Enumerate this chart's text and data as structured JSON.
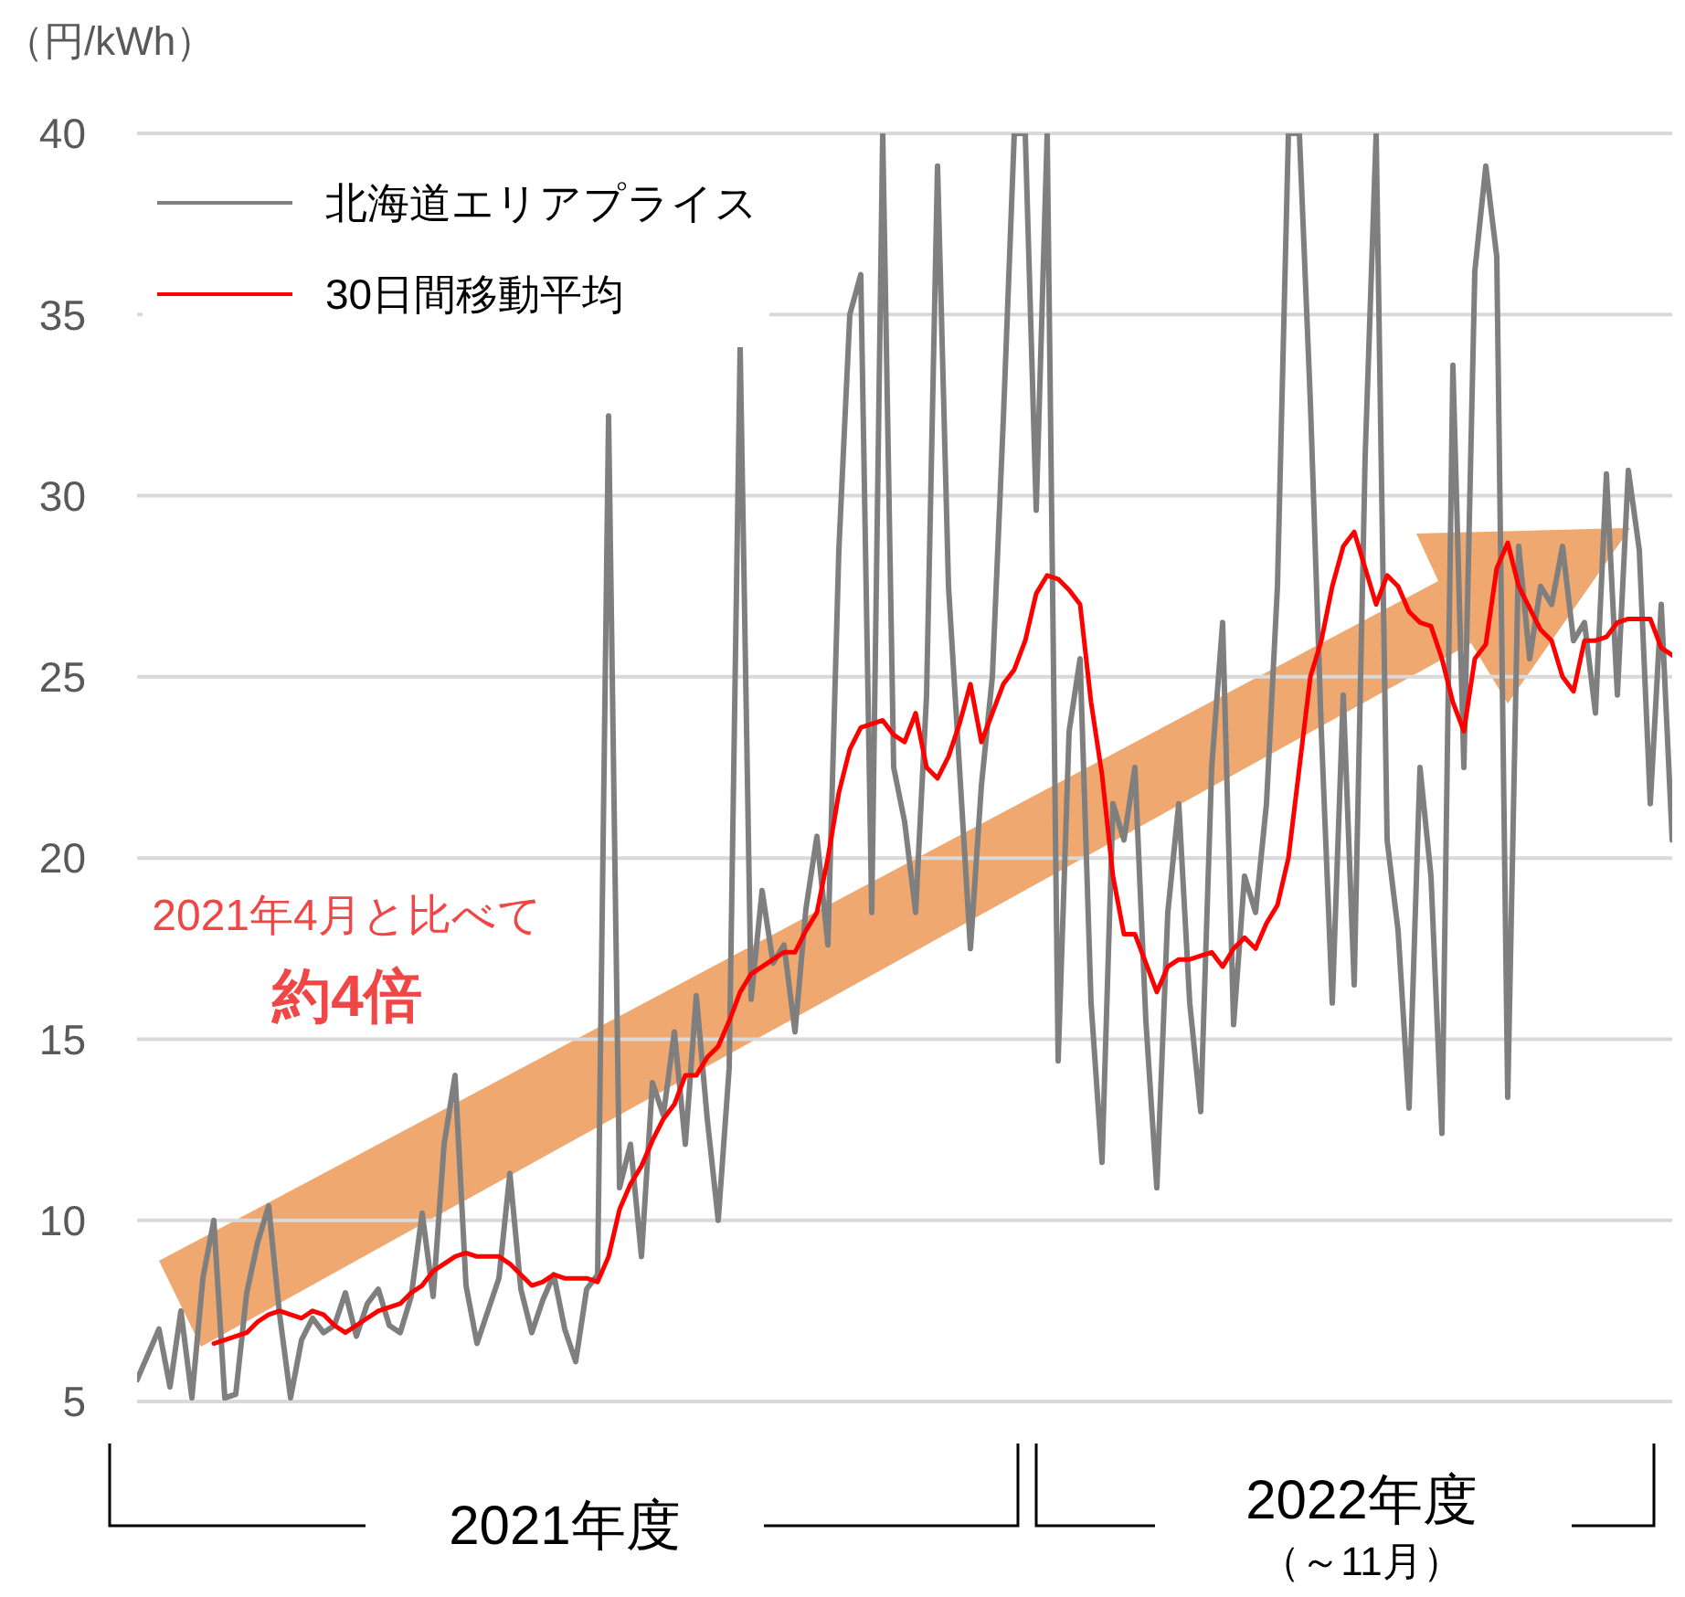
{
  "chart_data": {
    "type": "line",
    "ylabel": "（円/kWh）",
    "ylim": [
      5,
      40
    ],
    "yticks": [
      5,
      10,
      15,
      20,
      25,
      30,
      35,
      40
    ],
    "grid": "y",
    "legend": "top left",
    "tick_labels": "y",
    "categories": [
      null,
      null,
      null,
      null,
      null,
      null,
      null,
      null,
      null,
      null,
      null,
      null,
      null,
      null,
      null,
      null,
      null,
      null,
      null,
      null,
      null,
      null,
      null,
      null,
      null,
      null,
      null,
      null,
      null,
      null,
      null,
      null,
      null,
      null,
      null,
      null,
      null,
      null,
      null,
      null,
      null,
      null,
      null,
      null,
      null,
      null,
      null,
      null,
      null,
      null,
      null,
      null,
      null,
      null,
      null,
      null,
      null,
      null,
      null,
      null,
      null,
      null,
      null,
      null,
      null,
      null,
      null,
      null,
      null,
      null,
      null,
      null,
      null,
      null,
      null,
      null,
      null,
      null,
      null,
      null,
      null,
      null,
      null,
      null,
      null,
      null,
      null,
      null,
      null,
      null,
      null,
      null,
      null,
      null,
      null,
      null,
      null,
      null,
      null,
      null,
      null,
      null,
      null,
      null,
      null,
      null,
      null,
      null,
      null,
      null,
      null,
      null,
      null,
      null,
      null,
      null,
      null,
      null,
      null,
      null,
      null,
      null,
      null,
      null,
      null,
      null,
      null,
      null,
      null,
      null,
      null,
      null,
      null,
      null,
      null,
      null,
      null,
      null,
      null,
      null,
      null
    ],
    "series": [
      {
        "name": "北海道エリアプライス",
        "color": "#7f7f7f",
        "values": [
          5.6,
          6.3,
          7.0,
          5.4,
          7.5,
          5.1,
          8.4,
          10.0,
          5.1,
          5.2,
          8.0,
          9.4,
          10.4,
          7.4,
          5.1,
          6.7,
          7.3,
          6.9,
          7.1,
          8.0,
          6.8,
          7.7,
          8.1,
          7.1,
          6.9,
          7.9,
          10.2,
          7.9,
          12.1,
          14.0,
          8.2,
          6.6,
          7.5,
          8.4,
          11.3,
          8.1,
          6.9,
          7.8,
          8.5,
          7.0,
          6.1,
          8.1,
          8.5,
          32.2,
          10.9,
          12.1,
          9.0,
          13.8,
          12.9,
          15.2,
          12.1,
          16.2,
          12.8,
          10.0,
          14.2,
          34.1,
          16.1,
          19.1,
          17.1,
          17.6,
          15.2,
          18.6,
          20.6,
          17.6,
          28.5,
          35.0,
          36.1,
          18.5,
          40,
          22.5,
          21.0,
          18.5,
          24.5,
          39.1,
          27.5,
          22.5,
          17.5,
          22.0,
          25.0,
          32.1,
          40,
          40,
          29.6,
          40,
          14.4,
          23.5,
          25.5,
          16.0,
          11.6,
          21.5,
          20.5,
          22.5,
          15.5,
          10.9,
          18.5,
          21.5,
          16.0,
          13.0,
          22.5,
          26.5,
          15.4,
          19.5,
          18.5,
          21.5,
          27.5,
          40,
          40,
          32.6,
          23.5,
          16.0,
          24.5,
          16.5,
          31.1,
          40,
          20.5,
          18.0,
          13.1,
          22.5,
          19.5,
          12.4,
          33.6,
          22.5,
          36.2,
          39.1,
          36.6,
          13.4,
          28.6,
          25.5,
          27.5,
          27.0,
          28.6,
          26.0,
          26.5,
          24.0,
          30.6,
          24.5,
          30.7,
          28.5,
          21.5,
          27.0,
          20.5
        ]
      },
      {
        "name": "30日間移動平均",
        "color": "#ff0000",
        "values": [
          null,
          null,
          null,
          null,
          null,
          null,
          null,
          6.6,
          6.7,
          6.8,
          6.9,
          7.2,
          7.4,
          7.5,
          7.4,
          7.3,
          7.5,
          7.4,
          7.1,
          6.9,
          7.1,
          7.3,
          7.5,
          7.6,
          7.7,
          8.0,
          8.2,
          8.6,
          8.8,
          9.0,
          9.1,
          9.0,
          9.0,
          9.0,
          8.8,
          8.5,
          8.2,
          8.3,
          8.5,
          8.4,
          8.4,
          8.4,
          8.3,
          9.0,
          10.3,
          11.0,
          11.5,
          12.2,
          12.8,
          13.2,
          14.0,
          14.0,
          14.5,
          14.8,
          15.5,
          16.3,
          16.8,
          17.0,
          17.2,
          17.4,
          17.4,
          18.0,
          18.5,
          20.0,
          21.8,
          23.0,
          23.6,
          23.7,
          23.8,
          23.4,
          23.2,
          24.0,
          22.5,
          22.2,
          22.8,
          23.7,
          24.8,
          23.2,
          24.0,
          24.8,
          25.2,
          26.0,
          27.3,
          27.8,
          27.7,
          27.4,
          27.0,
          24.3,
          22.3,
          19.5,
          17.9,
          17.9,
          17.1,
          16.3,
          17.0,
          17.2,
          17.2,
          17.3,
          17.4,
          17.0,
          17.5,
          17.8,
          17.5,
          18.2,
          18.7,
          20.0,
          22.5,
          25.0,
          26.0,
          27.5,
          28.6,
          29.0,
          28.0,
          27.0,
          27.8,
          27.5,
          26.8,
          26.5,
          26.4,
          25.5,
          24.3,
          23.5,
          25.5,
          25.9,
          28.0,
          28.7,
          27.5,
          26.9,
          26.3,
          26.0,
          25.0,
          24.6,
          26.0,
          26.0,
          26.1,
          26.5,
          26.6,
          26.6,
          26.6,
          25.8,
          25.6
        ]
      }
    ],
    "annotations": [
      "2021年4月と比べて",
      "約4倍",
      "2021年度",
      "2022年度",
      "（～11月）"
    ]
  }
}
